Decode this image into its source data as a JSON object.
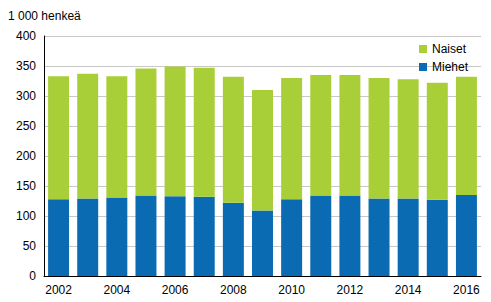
{
  "chart_data": {
    "type": "bar",
    "stacked": true,
    "y_label": "1 000 henkeä",
    "categories": [
      "2002",
      null,
      "2004",
      null,
      "2006",
      null,
      "2008",
      null,
      "2010",
      null,
      "2012",
      null,
      "2014",
      null,
      "2016"
    ],
    "series": [
      {
        "name": "Miehet",
        "color": "#0a6ab2",
        "values": [
          128,
          129,
          131,
          134,
          133,
          132,
          122,
          109,
          128,
          134,
          134,
          129,
          129,
          127,
          135
        ]
      },
      {
        "name": "Naiset",
        "color": "#a9cf38",
        "values": [
          205,
          208,
          202,
          212,
          216,
          215,
          210,
          201,
          202,
          201,
          201,
          201,
          199,
          195,
          197
        ]
      }
    ],
    "ylim": [
      0,
      400
    ],
    "yticks": [
      0,
      50,
      100,
      150,
      200,
      250,
      300,
      350,
      400
    ],
    "grid": true,
    "legend": "upper right"
  }
}
